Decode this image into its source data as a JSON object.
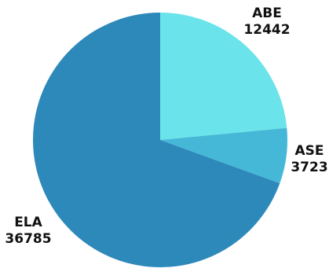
{
  "chart_data": {
    "type": "pie",
    "categories": [
      "ABE",
      "ASE",
      "ELA"
    ],
    "values": [
      12442,
      3723,
      36785
    ],
    "value_labels": [
      "12442",
      "3723",
      "36785"
    ],
    "colors": [
      "#6ae4ea",
      "#45b8d8",
      "#2e89bb"
    ],
    "title": "",
    "legend": "none",
    "start_angle_deg": 0,
    "direction": "clockwise"
  }
}
